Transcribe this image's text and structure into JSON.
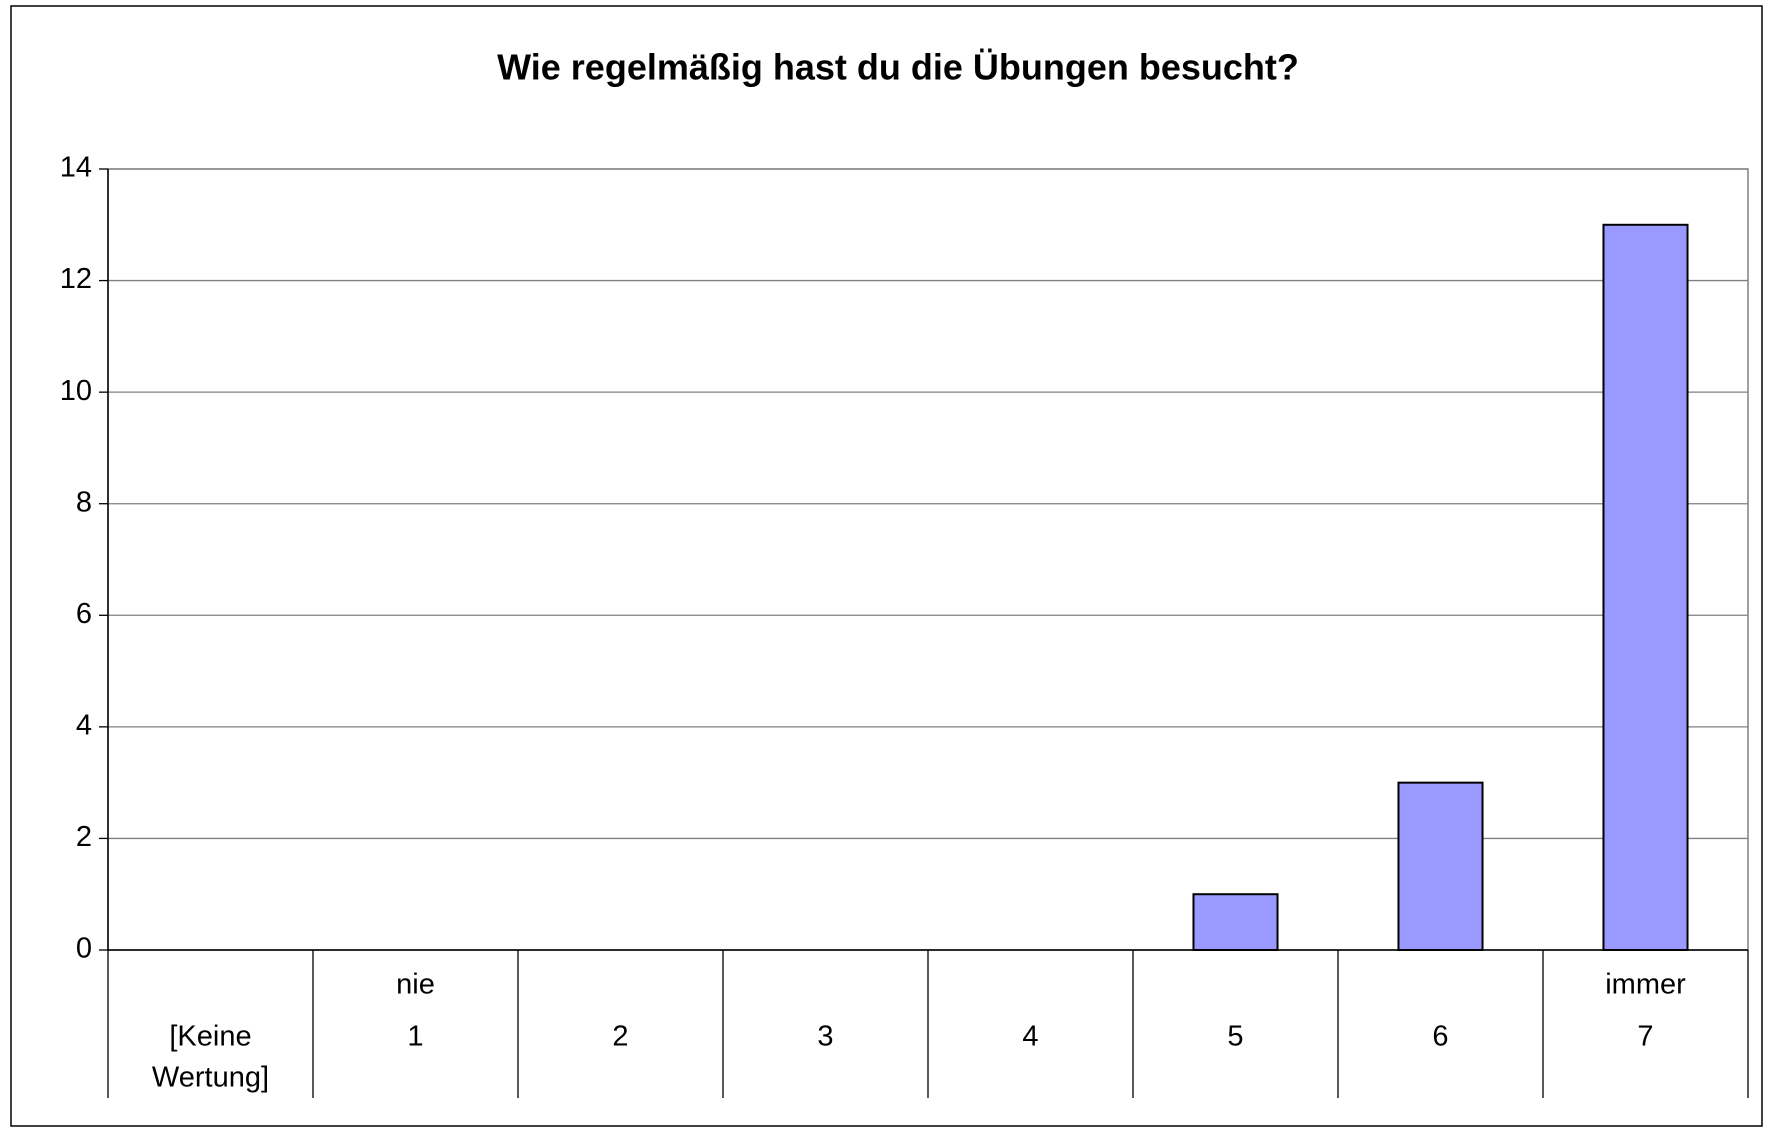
{
  "chart_data": {
    "type": "bar",
    "title": "Wie regelmäßig hast du die Übungen besucht?",
    "categories": [
      [
        "[Keine",
        "Wertung]"
      ],
      [
        "1"
      ],
      [
        "2"
      ],
      [
        "3"
      ],
      [
        "4"
      ],
      [
        "5"
      ],
      [
        "6"
      ],
      [
        "7"
      ]
    ],
    "scale_labels": [
      "nie",
      "immer"
    ],
    "values": [
      0,
      0,
      0,
      0,
      0,
      1,
      3,
      13
    ],
    "color": "#9999ff",
    "ylim": [
      0,
      14
    ],
    "yticks": [
      0,
      2,
      4,
      6,
      8,
      10,
      12,
      14
    ],
    "grid": true
  }
}
